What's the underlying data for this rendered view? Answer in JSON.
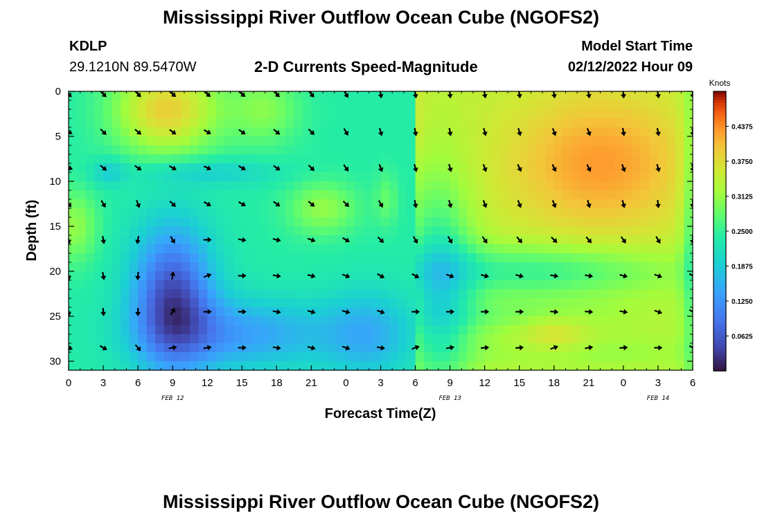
{
  "header": {
    "title": "Mississippi River Outflow Ocean Cube (NGOFS2)",
    "station": "KDLP",
    "coordinates": "29.1210N  89.5470W",
    "subtitle": "2-D Currents Speed-Magnitude",
    "model_start_label": "Model Start Time",
    "model_start_value": "02/12/2022 Hour 09"
  },
  "footer": {
    "title": "Mississippi River Outflow Ocean Cube (NGOFS2)"
  },
  "chart_data": {
    "type": "heatmap",
    "xlabel": "Forecast Time(Z)",
    "ylabel": "Depth (ft)",
    "x_ticks": [
      "0",
      "3",
      "6",
      "9",
      "12",
      "15",
      "18",
      "21",
      "0",
      "3",
      "6",
      "9",
      "12",
      "15",
      "18",
      "21",
      "0",
      "3",
      "6"
    ],
    "y_ticks": [
      "0",
      "5",
      "10",
      "15",
      "20",
      "25",
      "30"
    ],
    "x_range_hours": [
      0,
      54
    ],
    "y_range_ft": [
      0,
      31
    ],
    "date_labels": [
      {
        "text": "FEB 12",
        "hour": 9
      },
      {
        "text": "FEB 13",
        "hour": 33
      },
      {
        "text": "FEB 14",
        "hour": 51
      }
    ],
    "colorbar": {
      "label": "Knots",
      "ticks": [
        "0.4375",
        "0.3750",
        "0.3125",
        "0.2500",
        "0.1875",
        "0.1250",
        "0.0625"
      ],
      "tick_values": [
        0.4375,
        0.375,
        0.3125,
        0.25,
        0.1875,
        0.125,
        0.0625
      ],
      "range": [
        0.0,
        0.5
      ]
    },
    "arrow_times": [
      0,
      3,
      6,
      9,
      12,
      15,
      18,
      21,
      24,
      27,
      30,
      33,
      36,
      39,
      42,
      45,
      48,
      51,
      54
    ],
    "arrow_depths": [
      0.3,
      4.5,
      8.5,
      12.5,
      16.5,
      20.5,
      24.5,
      28.5
    ],
    "arrow_angles_deg": [
      [
        45,
        45,
        45,
        40,
        40,
        40,
        45,
        50,
        60,
        80,
        80,
        85,
        80,
        80,
        80,
        80,
        85,
        80,
        85
      ],
      [
        30,
        45,
        40,
        35,
        30,
        35,
        40,
        45,
        60,
        75,
        80,
        80,
        75,
        75,
        70,
        70,
        80,
        80,
        85
      ],
      [
        20,
        40,
        35,
        30,
        25,
        30,
        35,
        45,
        55,
        70,
        75,
        75,
        70,
        65,
        65,
        65,
        70,
        75,
        80
      ],
      [
        50,
        60,
        70,
        45,
        30,
        30,
        35,
        40,
        45,
        60,
        80,
        75,
        70,
        70,
        70,
        75,
        75,
        85,
        90
      ],
      [
        80,
        80,
        100,
        60,
        0,
        10,
        15,
        20,
        30,
        45,
        60,
        60,
        55,
        50,
        45,
        50,
        55,
        60,
        90
      ],
      [
        80,
        80,
        95,
        -80,
        -20,
        0,
        10,
        15,
        20,
        30,
        30,
        20,
        15,
        15,
        10,
        10,
        15,
        20,
        30
      ],
      [
        80,
        85,
        90,
        -60,
        0,
        0,
        10,
        15,
        15,
        20,
        0,
        0,
        0,
        0,
        5,
        5,
        10,
        20,
        30
      ],
      [
        20,
        30,
        50,
        -10,
        -10,
        0,
        10,
        15,
        20,
        10,
        -20,
        -10,
        -5,
        -5,
        -20,
        -10,
        -5,
        0,
        30
      ]
    ]
  }
}
